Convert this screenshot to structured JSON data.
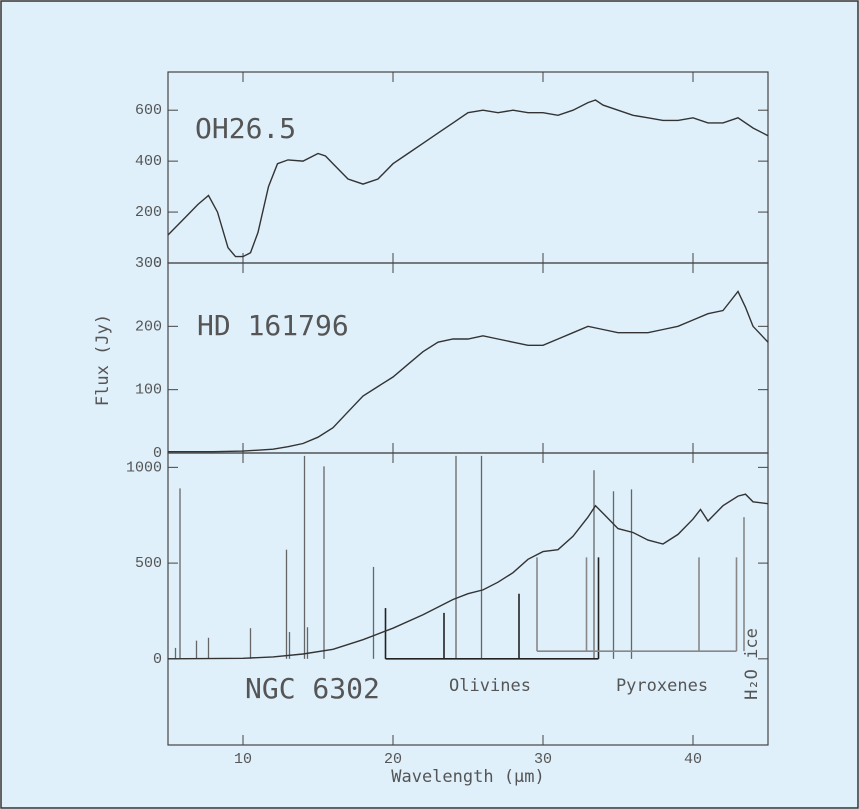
{
  "chart_data": [
    {
      "type": "line",
      "title": "OH26.5",
      "color": "#333",
      "x": [
        5,
        6,
        7,
        7.7,
        8.3,
        9,
        9.5,
        10,
        10.5,
        11,
        11.7,
        12.3,
        13,
        14,
        15,
        15.5,
        16,
        17,
        18,
        19,
        20,
        21,
        22,
        23,
        24,
        25,
        26,
        27,
        28,
        29,
        30,
        31,
        32,
        33,
        33.5,
        34,
        35,
        36,
        37,
        38,
        39,
        40,
        41,
        42,
        43,
        44,
        45
      ],
      "values": [
        110,
        170,
        230,
        265,
        200,
        60,
        25,
        25,
        40,
        120,
        300,
        390,
        405,
        400,
        430,
        420,
        390,
        330,
        310,
        330,
        390,
        430,
        470,
        510,
        550,
        590,
        600,
        590,
        600,
        590,
        590,
        580,
        600,
        630,
        640,
        620,
        600,
        580,
        570,
        560,
        560,
        570,
        550,
        550,
        570,
        530,
        500
      ],
      "xlim": [
        5,
        45
      ],
      "xticks": [
        10,
        20,
        30,
        40
      ],
      "ylim": [
        0,
        750
      ],
      "yticks": [
        0,
        200,
        400,
        600
      ]
    },
    {
      "type": "line",
      "title": "HD 161796",
      "ylabel": "Flux (Jy)",
      "color": "#333",
      "x": [
        5,
        8,
        10,
        12,
        13,
        14,
        15,
        16,
        17,
        18,
        19,
        20,
        21,
        22,
        23,
        24,
        25,
        26,
        27,
        28,
        29,
        30,
        31,
        32,
        33,
        34,
        35,
        36,
        37,
        38,
        39,
        40,
        41,
        42,
        42.5,
        43,
        43.5,
        44,
        45
      ],
      "values": [
        2,
        2,
        3,
        6,
        10,
        15,
        25,
        40,
        65,
        90,
        105,
        120,
        140,
        160,
        175,
        180,
        180,
        185,
        180,
        175,
        170,
        170,
        180,
        190,
        200,
        195,
        190,
        190,
        190,
        195,
        200,
        210,
        220,
        225,
        240,
        255,
        230,
        200,
        175
      ],
      "xlim": [
        5,
        45
      ],
      "xticks": [
        10,
        20,
        30,
        40
      ],
      "ylim": [
        0,
        300
      ],
      "yticks": [
        0,
        100,
        200,
        300
      ]
    },
    {
      "type": "line",
      "title": "NGC 6302",
      "xlabel": "Wavelength (μm)",
      "color": "#333",
      "x": [
        5,
        10,
        12,
        14,
        16,
        18,
        20,
        22,
        24,
        25,
        26,
        27,
        28,
        29,
        30,
        31,
        32,
        33,
        33.5,
        34,
        35,
        36,
        37,
        38,
        39,
        40,
        40.5,
        41,
        42,
        43,
        43.5,
        44,
        45
      ],
      "values": [
        0,
        3,
        10,
        25,
        50,
        100,
        160,
        230,
        310,
        340,
        360,
        400,
        450,
        520,
        560,
        570,
        640,
        740,
        800,
        760,
        680,
        660,
        620,
        600,
        650,
        730,
        780,
        720,
        800,
        850,
        860,
        820,
        810
      ],
      "lines": {
        "color": "#666",
        "x": [
          5.5,
          5.8,
          6.9,
          7.7,
          10.5,
          12.9,
          13.1,
          14.1,
          14.3,
          15.4,
          18.7,
          24.2,
          25.9,
          33.4,
          34.7,
          35.9
        ],
        "values": [
          57,
          890,
          95,
          110,
          160,
          570,
          140,
          1060,
          165,
          1005,
          480,
          1060,
          1060,
          985,
          875,
          885
        ]
      },
      "features": [
        {
          "name": "Olivines",
          "color": "#222",
          "base": 0,
          "x": [
            19.5,
            23.4,
            28.4,
            33.7
          ],
          "values": [
            265,
            240,
            340,
            530
          ]
        },
        {
          "name": "Pyroxenes",
          "color": "#888",
          "base": 40,
          "x": [
            29.6,
            32.9,
            40.4,
            42.9
          ],
          "values": [
            530,
            530,
            530,
            530
          ]
        },
        {
          "name": "H₂O ice",
          "color": "#888",
          "base": 40,
          "x": [
            43.4
          ],
          "values": [
            740
          ]
        }
      ],
      "xlim": [
        5,
        45
      ],
      "xticks": [
        10,
        20,
        30,
        40
      ],
      "ylim": [
        -450,
        1075
      ],
      "yticks": [
        0,
        500,
        1000
      ]
    }
  ]
}
